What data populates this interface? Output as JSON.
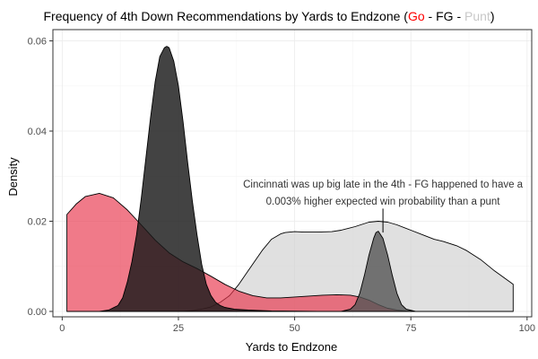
{
  "chart_data": {
    "type": "area",
    "title": {
      "prefix": "Frequency of 4th Down Recommendations by Yards to Endzone (",
      "go": "Go",
      "sep1": " - ",
      "fg": "FG",
      "sep2": " - ",
      "punt": "Punt",
      "suffix": ")"
    },
    "xlabel": "Yards to Endzone",
    "ylabel": "Density",
    "xlim": [
      -2,
      101
    ],
    "ylim": [
      -0.0012,
      0.0625
    ],
    "x_ticks": [
      0,
      25,
      50,
      75,
      100
    ],
    "x_tick_labels": [
      "0",
      "25",
      "50",
      "75",
      "100"
    ],
    "y_ticks": [
      0,
      0.02,
      0.04,
      0.06
    ],
    "y_tick_labels": [
      "0.00",
      "0.02",
      "0.04",
      "0.06"
    ],
    "grid": true,
    "legend": "none",
    "colors": {
      "go": "#e8334a",
      "fg": "#1a1a1a",
      "fg_small": "#555555",
      "punt": "#cfcfcf",
      "title_go": "#ff0000",
      "title_punt": "#c8c8c8"
    },
    "series": [
      {
        "x": [
          97,
          95,
          93,
          90,
          87,
          85,
          82,
          80,
          78,
          75,
          72,
          70,
          68,
          66,
          63,
          60,
          58,
          55,
          52,
          50,
          48,
          47,
          45,
          43,
          42,
          40,
          38,
          36,
          34,
          32,
          30,
          28,
          26,
          24,
          22,
          20,
          18,
          16,
          14,
          12,
          10
        ],
        "y": [
          0.006,
          0.0075,
          0.009,
          0.0115,
          0.0135,
          0.0145,
          0.0155,
          0.016,
          0.0168,
          0.018,
          0.0192,
          0.0198,
          0.02,
          0.0198,
          0.0188,
          0.018,
          0.0177,
          0.0176,
          0.0176,
          0.0177,
          0.0175,
          0.0172,
          0.016,
          0.0135,
          0.012,
          0.009,
          0.006,
          0.0035,
          0.002,
          0.001,
          0.0005,
          0.0002,
          0,
          0,
          0,
          0,
          0,
          0,
          0,
          0,
          0
        ]
      },
      {
        "x": [
          1,
          3,
          5,
          8,
          11,
          14,
          17,
          20,
          23,
          26,
          29,
          32,
          35,
          38,
          41,
          44,
          47,
          50,
          53,
          56,
          59,
          62,
          64,
          66,
          68,
          70,
          72,
          74,
          76,
          78,
          80
        ],
        "y": [
          0.0215,
          0.0238,
          0.0255,
          0.0262,
          0.0252,
          0.0225,
          0.0192,
          0.0158,
          0.013,
          0.011,
          0.0095,
          0.0078,
          0.006,
          0.0045,
          0.0035,
          0.003,
          0.003,
          0.0032,
          0.0034,
          0.0036,
          0.0037,
          0.0036,
          0.0032,
          0.0025,
          0.0015,
          0.0007,
          0.0003,
          0.0001,
          0,
          0,
          0
        ]
      },
      {
        "x": [
          8,
          10,
          12,
          13,
          14,
          15,
          16,
          17,
          18,
          19,
          20,
          21,
          22,
          22.5,
          23,
          24,
          25,
          26,
          27,
          28,
          29,
          30,
          31,
          32,
          33,
          34,
          35,
          37,
          40,
          45,
          50,
          55,
          60,
          65,
          70,
          75
        ],
        "y": [
          0,
          0.0003,
          0.0013,
          0.003,
          0.0065,
          0.011,
          0.017,
          0.025,
          0.034,
          0.043,
          0.051,
          0.0565,
          0.0585,
          0.0588,
          0.0585,
          0.0555,
          0.05,
          0.042,
          0.033,
          0.0245,
          0.017,
          0.0105,
          0.006,
          0.0035,
          0.002,
          0.0013,
          0.0009,
          0.0005,
          0.0003,
          0.0001,
          5e-05,
          0,
          0,
          0,
          0,
          0
        ]
      },
      {
        "x": [
          60,
          62,
          63,
          64,
          65,
          66,
          67,
          67.5,
          68,
          69,
          70,
          71,
          72,
          73,
          74,
          76
        ],
        "y": [
          0,
          0.0005,
          0.0015,
          0.004,
          0.008,
          0.0125,
          0.0162,
          0.0175,
          0.0178,
          0.0162,
          0.0125,
          0.008,
          0.004,
          0.0015,
          0.0005,
          0
        ]
      }
    ],
    "annotation": {
      "lines": [
        "Cincinnati was up big late in the 4th - FG happened to have a",
        "0.003% higher expected win probability than a punt"
      ],
      "x": 69,
      "y_line_top": 0.0228,
      "y_line_bottom": 0.0175,
      "y_text_line1": 0.0275,
      "y_text_line2": 0.0237
    }
  }
}
